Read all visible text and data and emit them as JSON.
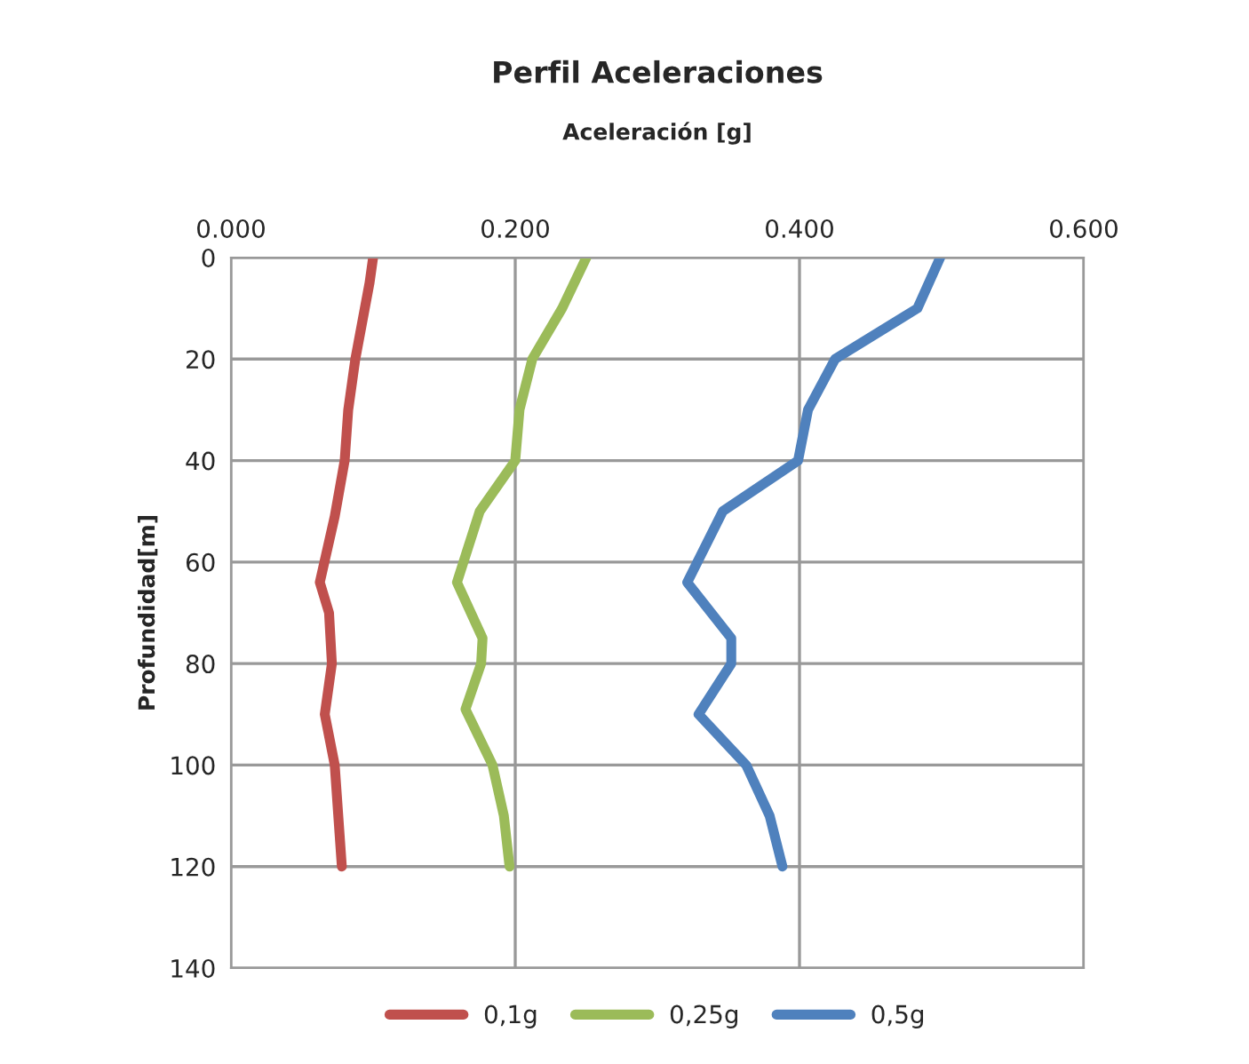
{
  "chart_data": {
    "type": "line",
    "title": "Perfil Aceleraciones",
    "xlabel": "Aceleración [g]",
    "ylabel": "Profundidad[m]",
    "series": [
      {
        "name": "0,1g",
        "color": "#c0504d",
        "x": [
          0.1,
          0.0975,
          0.0875,
          0.0825,
          0.08,
          0.073,
          0.0625,
          0.069,
          0.071,
          0.066,
          0.073,
          0.078
        ],
        "values": [
          0,
          5,
          20,
          30,
          40,
          51,
          64,
          70,
          80,
          90,
          100,
          120
        ]
      },
      {
        "name": "0,25g",
        "color": "#9bbb59",
        "x": [
          0.25,
          0.233,
          0.212,
          0.203,
          0.2,
          0.175,
          0.159,
          0.177,
          0.176,
          0.165,
          0.184,
          0.192,
          0.196
        ],
        "values": [
          0,
          10,
          20,
          30,
          40,
          50,
          64,
          75,
          80,
          89,
          100,
          110,
          120
        ]
      },
      {
        "name": "0,5g",
        "color": "#4f81bd",
        "x": [
          0.499,
          0.483,
          0.425,
          0.406,
          0.399,
          0.346,
          0.321,
          0.352,
          0.352,
          0.329,
          0.3625,
          0.379,
          0.388
        ],
        "values": [
          0,
          10,
          20,
          30,
          40,
          50,
          64,
          75,
          80,
          90,
          100,
          110,
          120
        ]
      }
    ],
    "xlim": [
      0,
      0.6
    ],
    "xticks": [
      {
        "value": 0,
        "label": "0.000"
      },
      {
        "value": 0.2,
        "label": "0.200"
      },
      {
        "value": 0.4,
        "label": "0.400"
      },
      {
        "value": 0.6,
        "label": "0.600"
      }
    ],
    "ylim": [
      140,
      0
    ],
    "yticks": [
      0,
      20,
      40,
      60,
      80,
      100,
      120,
      140
    ],
    "grid": true,
    "legend": "bottom",
    "line_style": "solid",
    "marker": "none"
  }
}
